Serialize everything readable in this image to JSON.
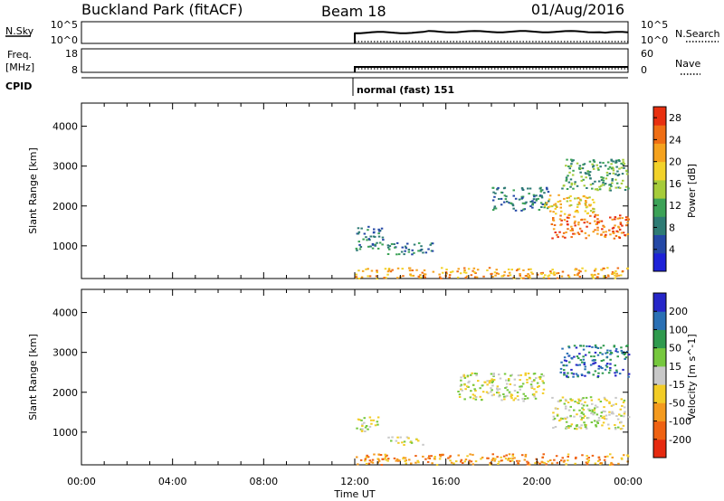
{
  "header": {
    "station": "Buckland Park (fitACF)",
    "beam": "Beam 18",
    "date": "01/Aug/2016"
  },
  "strip_panels": {
    "noise": {
      "left_label": "N.Sky",
      "right_label": "N.Search",
      "left_ticks": [
        "10^5",
        "10^0"
      ],
      "right_ticks": [
        "10^5",
        "10^0"
      ]
    },
    "freq": {
      "left_label_1": "Freq.",
      "left_label_2": "[MHz]",
      "right_label": "Nave",
      "left_ticks": [
        "18",
        "8"
      ],
      "right_ticks": [
        "60",
        "0"
      ]
    },
    "cpid": {
      "label": "CPID",
      "mode_text": "normal (fast) 151"
    }
  },
  "chart_data": [
    {
      "type": "heatmap",
      "name": "power",
      "ylabel": "Slant Range [km]",
      "xlabel": "Time UT",
      "x_ticks": [
        "00:00",
        "04:00",
        "08:00",
        "12:00",
        "16:00",
        "20:00",
        "00:00"
      ],
      "x_range_hours": [
        0,
        24
      ],
      "data_start_hour": 12,
      "y_ticks": [
        1000,
        2000,
        3000,
        4000
      ],
      "y_range_km": [
        180,
        4580
      ],
      "colorbar": {
        "title": "Power [dB]",
        "ticks": [
          4,
          8,
          12,
          16,
          20,
          24,
          28
        ],
        "range": [
          0,
          30
        ],
        "colors": [
          "#1e22d8",
          "#2448a6",
          "#2e7b74",
          "#3ca257",
          "#a6cc3a",
          "#f2d22a",
          "#f5a21e",
          "#ef6e14",
          "#e83010"
        ]
      },
      "echo_regions": [
        {
          "t0": 12.0,
          "t1": 24.0,
          "r0": 200,
          "r1": 470,
          "level": 22
        },
        {
          "t0": 12.0,
          "t1": 13.2,
          "r0": 900,
          "r1": 1500,
          "level": 8
        },
        {
          "t0": 13.4,
          "t1": 15.5,
          "r0": 800,
          "r1": 1100,
          "level": 8
        },
        {
          "t0": 18.0,
          "t1": 20.5,
          "r0": 1900,
          "r1": 2500,
          "level": 8
        },
        {
          "t0": 20.6,
          "t1": 24.0,
          "r0": 1200,
          "r1": 1800,
          "level": 26
        },
        {
          "t0": 20.3,
          "t1": 22.5,
          "r0": 1800,
          "r1": 2300,
          "level": 18
        },
        {
          "t0": 21.0,
          "t1": 24.0,
          "r0": 2400,
          "r1": 3200,
          "level": 10
        }
      ]
    },
    {
      "type": "heatmap",
      "name": "velocity",
      "ylabel": "Slant Range [km]",
      "xlabel": "Time UT",
      "x_ticks": [
        "00:00",
        "04:00",
        "08:00",
        "12:00",
        "16:00",
        "20:00",
        "00:00"
      ],
      "x_range_hours": [
        0,
        24
      ],
      "data_start_hour": 12,
      "y_ticks": [
        1000,
        2000,
        3000,
        4000
      ],
      "y_range_km": [
        180,
        4580
      ],
      "colorbar": {
        "title": "Velocity [m s^-1]",
        "ticks": [
          "200",
          "100",
          "50",
          "15",
          "-15",
          "-50",
          "-100",
          "-200"
        ],
        "colors": [
          "#2626c8",
          "#2a70b4",
          "#2f9a4e",
          "#76c83e",
          "#c8c8c8",
          "#f2cc26",
          "#f49a1e",
          "#ef6212",
          "#e62a10"
        ]
      },
      "echo_regions": [
        {
          "t0": 12.0,
          "t1": 24.0,
          "r0": 200,
          "r1": 470,
          "level": -50
        },
        {
          "t0": 12.0,
          "t1": 13.0,
          "r0": 1000,
          "r1": 1400,
          "level": 0
        },
        {
          "t0": 13.4,
          "t1": 15.0,
          "r0": 700,
          "r1": 900,
          "level": 0
        },
        {
          "t0": 16.5,
          "t1": 20.3,
          "r0": 1800,
          "r1": 2500,
          "level": 0
        },
        {
          "t0": 20.6,
          "t1": 24.0,
          "r0": 1100,
          "r1": 1900,
          "level": 0
        },
        {
          "t0": 21.0,
          "t1": 24.0,
          "r0": 2400,
          "r1": 3200,
          "level": 100
        }
      ]
    }
  ],
  "colors": {
    "background": "#ffffff",
    "axes": "#000000",
    "groundscatter": "#b4b4b4"
  }
}
